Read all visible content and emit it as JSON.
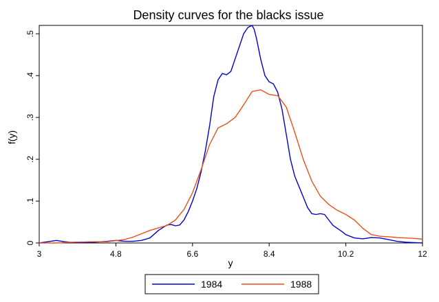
{
  "chart_data": {
    "type": "line",
    "title": "Density curves for the blacks issue",
    "xlabel": "y",
    "ylabel": "f(y)",
    "xlim": [
      3,
      12
    ],
    "ylim": [
      0,
      0.52
    ],
    "xticks": [
      3,
      4.8,
      6.6,
      8.4,
      10.2,
      12
    ],
    "xtick_labels": [
      "3",
      "4.8",
      "6.6",
      "8.4",
      "10.2",
      "12"
    ],
    "yticks": [
      0,
      0.1,
      0.2,
      0.3,
      0.4,
      0.5
    ],
    "ytick_labels": [
      "0",
      ".1",
      ".2",
      ".3",
      ".4",
      ".5"
    ],
    "grid": false,
    "legend_position": "bottom",
    "series": [
      {
        "name": "1984",
        "color": "#0000cc",
        "x": [
          3.0,
          3.2,
          3.4,
          3.6,
          3.8,
          4.0,
          4.3,
          4.6,
          4.8,
          5.0,
          5.2,
          5.4,
          5.6,
          5.8,
          6.0,
          6.1,
          6.2,
          6.3,
          6.4,
          6.5,
          6.6,
          6.7,
          6.8,
          6.9,
          7.0,
          7.1,
          7.2,
          7.3,
          7.4,
          7.5,
          7.6,
          7.7,
          7.8,
          7.9,
          8.0,
          8.05,
          8.1,
          8.2,
          8.3,
          8.4,
          8.5,
          8.6,
          8.7,
          8.8,
          8.9,
          9.0,
          9.1,
          9.2,
          9.3,
          9.4,
          9.5,
          9.6,
          9.7,
          9.8,
          9.9,
          10.0,
          10.1,
          10.2,
          10.4,
          10.6,
          10.8,
          11.0,
          11.2,
          11.4,
          11.6,
          11.8,
          12.0
        ],
        "y": [
          0.0,
          0.003,
          0.006,
          0.003,
          0.001,
          0.001,
          0.002,
          0.004,
          0.006,
          0.004,
          0.004,
          0.006,
          0.012,
          0.03,
          0.043,
          0.044,
          0.041,
          0.043,
          0.055,
          0.075,
          0.1,
          0.13,
          0.17,
          0.22,
          0.28,
          0.35,
          0.39,
          0.405,
          0.402,
          0.41,
          0.44,
          0.47,
          0.5,
          0.515,
          0.52,
          0.51,
          0.49,
          0.44,
          0.4,
          0.385,
          0.38,
          0.36,
          0.32,
          0.26,
          0.2,
          0.16,
          0.135,
          0.11,
          0.085,
          0.07,
          0.068,
          0.07,
          0.068,
          0.055,
          0.042,
          0.035,
          0.028,
          0.02,
          0.012,
          0.01,
          0.013,
          0.012,
          0.008,
          0.004,
          0.002,
          0.001,
          0.0
        ]
      },
      {
        "name": "1988",
        "color": "#e8501a",
        "x": [
          3.0,
          3.4,
          3.8,
          4.2,
          4.6,
          5.0,
          5.2,
          5.4,
          5.6,
          5.8,
          6.0,
          6.2,
          6.4,
          6.6,
          6.8,
          7.0,
          7.2,
          7.4,
          7.6,
          7.8,
          8.0,
          8.2,
          8.4,
          8.6,
          8.8,
          9.0,
          9.2,
          9.4,
          9.6,
          9.8,
          10.0,
          10.2,
          10.4,
          10.6,
          10.8,
          11.0,
          11.2,
          11.4,
          11.6,
          11.8,
          12.0
        ],
        "y": [
          0.0,
          0.0,
          0.002,
          0.003,
          0.003,
          0.008,
          0.014,
          0.022,
          0.03,
          0.036,
          0.042,
          0.055,
          0.08,
          0.12,
          0.175,
          0.235,
          0.275,
          0.285,
          0.3,
          0.33,
          0.362,
          0.366,
          0.355,
          0.352,
          0.325,
          0.265,
          0.2,
          0.148,
          0.112,
          0.092,
          0.078,
          0.068,
          0.055,
          0.035,
          0.02,
          0.016,
          0.015,
          0.013,
          0.012,
          0.011,
          0.009
        ]
      }
    ]
  }
}
